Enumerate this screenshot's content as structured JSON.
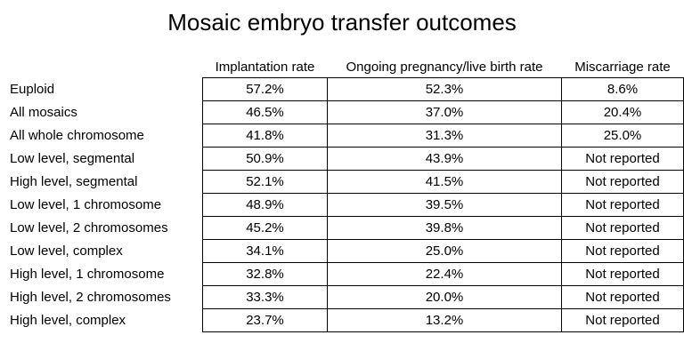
{
  "chart_data": {
    "type": "table",
    "title": "Mosaic embryo transfer outcomes",
    "columns": [
      "Implantation rate",
      "Ongoing pregnancy/live birth rate",
      "Miscarriage rate"
    ],
    "rows": [
      {
        "label": "Euploid",
        "values": [
          "57.2%",
          "52.3%",
          "8.6%"
        ]
      },
      {
        "label": "All mosaics",
        "values": [
          "46.5%",
          "37.0%",
          "20.4%"
        ]
      },
      {
        "label": "All whole chromosome",
        "values": [
          "41.8%",
          "31.3%",
          "25.0%"
        ]
      },
      {
        "label": "Low level, segmental",
        "values": [
          "50.9%",
          "43.9%",
          "Not reported"
        ]
      },
      {
        "label": "High level, segmental",
        "values": [
          "52.1%",
          "41.5%",
          "Not reported"
        ]
      },
      {
        "label": "Low level, 1 chromosome",
        "values": [
          "48.9%",
          "39.5%",
          "Not reported"
        ]
      },
      {
        "label": "Low level, 2 chromosomes",
        "values": [
          "45.2%",
          "39.8%",
          "Not reported"
        ]
      },
      {
        "label": "Low level, complex",
        "values": [
          "34.1%",
          "25.0%",
          "Not reported"
        ]
      },
      {
        "label": "High level, 1 chromosome",
        "values": [
          "32.8%",
          "22.4%",
          "Not reported"
        ]
      },
      {
        "label": "High level, 2 chromosomes",
        "values": [
          "33.3%",
          "20.0%",
          "Not reported"
        ]
      },
      {
        "label": "High level, complex",
        "values": [
          "23.7%",
          "13.2%",
          "Not reported"
        ]
      }
    ]
  }
}
